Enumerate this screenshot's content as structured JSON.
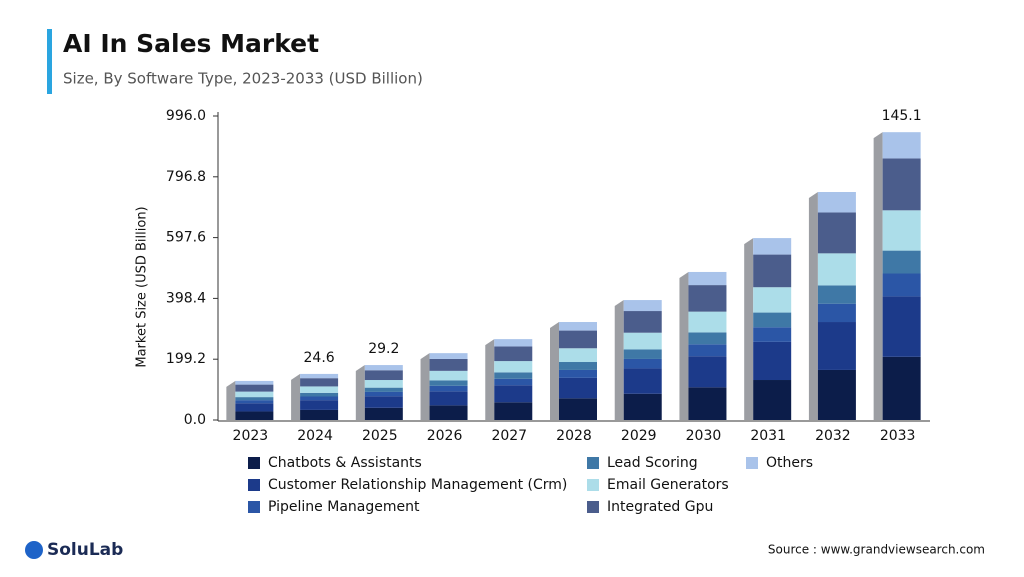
{
  "chart_data": {
    "type": "bar",
    "stacked": true,
    "title": "AI In Sales Market",
    "subtitle": "Size, By Software Type, 2023-2033 (USD Billion)",
    "y_label": "Market Size (USD Billion)",
    "categories": [
      "2023",
      "2024",
      "2025",
      "2026",
      "2027",
      "2028",
      "2029",
      "2030",
      "2031",
      "2032",
      "2033"
    ],
    "series": [
      {
        "name": "Chatbots & Assistants",
        "color": "#0c1d4a",
        "values": [
          28,
          33,
          40,
          48,
          58,
          71,
          86,
          107,
          131,
          164,
          207
        ]
      },
      {
        "name": "Customer Relationship Management (Crm)",
        "color": "#1c3a8a",
        "values": [
          27,
          32,
          38,
          46,
          56,
          67,
          83,
          102,
          125,
          157,
          198
        ]
      },
      {
        "name": "Pipeline Management",
        "color": "#2b56a6",
        "values": [
          10,
          12,
          14,
          18,
          21,
          26,
          31,
          39,
          48,
          60,
          75
        ]
      },
      {
        "name": "Lead Scoring",
        "color": "#3f78a6",
        "values": [
          10,
          12,
          14,
          18,
          21,
          26,
          31,
          39,
          48,
          60,
          75
        ]
      },
      {
        "name": "Email Generators",
        "color": "#acdde9",
        "values": [
          18,
          21,
          25,
          31,
          37,
          45,
          55,
          68,
          83,
          105,
          132
        ]
      },
      {
        "name": "Integrated Gpu",
        "color": "#4b5d8c",
        "values": [
          23,
          27,
          32,
          39,
          48,
          58,
          71,
          87,
          107,
          134,
          170
        ]
      },
      {
        "name": "Others",
        "color": "#a9c3ea",
        "values": [
          12,
          14,
          17,
          19,
          24,
          28,
          36,
          43,
          54,
          67,
          86
        ]
      }
    ],
    "annotations": [
      {
        "category": "2024",
        "text": "24.6"
      },
      {
        "category": "2025",
        "text": "29.2"
      },
      {
        "category": "2033",
        "text": "145.1"
      }
    ],
    "ylim": [
      0,
      996
    ],
    "yticks": [
      {
        "value": 0,
        "label": "0.0"
      },
      199.2,
      398.4,
      597.6,
      796.8,
      {
        "value": 996,
        "label": "996.0"
      }
    ]
  },
  "footer": {
    "logo": "SoluLab",
    "source": "Source :  www.grandviewsearch.com"
  }
}
